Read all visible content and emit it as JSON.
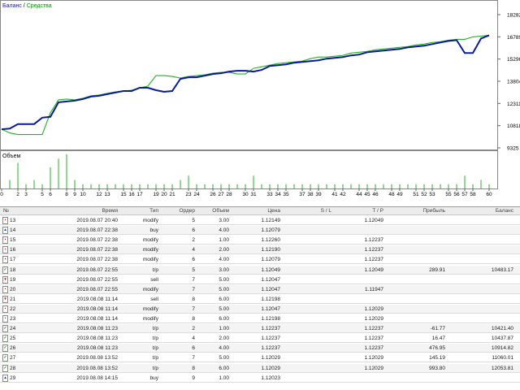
{
  "legend": {
    "balance": "Баланс",
    "separator": " / ",
    "equity": "Средства"
  },
  "volume_label": "Объем",
  "colors": {
    "balance": "#0a1a9a",
    "equity": "#22b422",
    "volume": "#22b422"
  },
  "chart_data": {
    "type": "line",
    "ylim": [
      9325,
      18282
    ],
    "yticks": [
      "18282",
      "16789",
      "15296",
      "13804",
      "12311",
      "10818",
      "9325"
    ],
    "xticks": [
      "0",
      "2",
      "3",
      "5",
      "6",
      "8",
      "9",
      "10",
      "12",
      "13",
      "15",
      "16",
      "17",
      "19",
      "20",
      "21",
      "23",
      "24",
      "26",
      "27",
      "28",
      "30",
      "31",
      "33",
      "34",
      "35",
      "37",
      "38",
      "39",
      "41",
      "42",
      "44",
      "45",
      "46",
      "48",
      "49",
      "51",
      "52",
      "53",
      "55",
      "56",
      "57",
      "58",
      "60"
    ],
    "x_max": 61,
    "series": [
      {
        "name": "Баланс",
        "points": [
          [
            0,
            10580
          ],
          [
            1,
            10620
          ],
          [
            2,
            10900
          ],
          [
            4,
            10900
          ],
          [
            5,
            11300
          ],
          [
            6,
            11350
          ],
          [
            7,
            12250
          ],
          [
            8,
            12300
          ],
          [
            9,
            12350
          ],
          [
            10,
            12450
          ],
          [
            11,
            12600
          ],
          [
            12,
            12650
          ],
          [
            13,
            12750
          ],
          [
            14,
            12850
          ],
          [
            15,
            12950
          ],
          [
            16,
            12950
          ],
          [
            17,
            13150
          ],
          [
            18,
            13150
          ],
          [
            19,
            13000
          ],
          [
            20,
            12900
          ],
          [
            21,
            12950
          ],
          [
            22,
            13700
          ],
          [
            23,
            13800
          ],
          [
            24,
            13800
          ],
          [
            25,
            13900
          ],
          [
            26,
            14000
          ],
          [
            27,
            14050
          ],
          [
            28,
            14150
          ],
          [
            29,
            14200
          ],
          [
            30,
            14200
          ],
          [
            31,
            14150
          ],
          [
            32,
            14250
          ],
          [
            33,
            14500
          ],
          [
            34,
            14550
          ],
          [
            35,
            14600
          ],
          [
            36,
            14700
          ],
          [
            37,
            14750
          ],
          [
            38,
            14800
          ],
          [
            39,
            14850
          ],
          [
            40,
            14950
          ],
          [
            41,
            15000
          ],
          [
            42,
            15050
          ],
          [
            43,
            15150
          ],
          [
            44,
            15200
          ],
          [
            45,
            15350
          ],
          [
            46,
            15400
          ],
          [
            47,
            15450
          ],
          [
            48,
            15500
          ],
          [
            49,
            15550
          ],
          [
            50,
            15650
          ],
          [
            51,
            15700
          ],
          [
            52,
            15750
          ],
          [
            53,
            15850
          ],
          [
            54,
            15950
          ],
          [
            55,
            16050
          ],
          [
            56,
            16100
          ],
          [
            57,
            15300
          ],
          [
            58,
            15300
          ],
          [
            59,
            16200
          ],
          [
            60,
            16400
          ]
        ]
      },
      {
        "name": "Средства",
        "points": [
          [
            0,
            10580
          ],
          [
            1,
            10350
          ],
          [
            2,
            10250
          ],
          [
            5,
            10250
          ],
          [
            6,
            11600
          ],
          [
            7,
            12400
          ],
          [
            8,
            12450
          ],
          [
            9,
            12400
          ],
          [
            10,
            12500
          ],
          [
            11,
            12650
          ],
          [
            12,
            12700
          ],
          [
            13,
            12800
          ],
          [
            14,
            12900
          ],
          [
            15,
            12950
          ],
          [
            16,
            13000
          ],
          [
            17,
            13150
          ],
          [
            18,
            13250
          ],
          [
            19,
            13900
          ],
          [
            20,
            13900
          ],
          [
            21,
            13850
          ],
          [
            22,
            13750
          ],
          [
            23,
            13850
          ],
          [
            24,
            13900
          ],
          [
            25,
            13950
          ],
          [
            26,
            14050
          ],
          [
            27,
            14100
          ],
          [
            28,
            14100
          ],
          [
            29,
            14000
          ],
          [
            30,
            14000
          ],
          [
            31,
            14350
          ],
          [
            32,
            14450
          ],
          [
            33,
            14550
          ],
          [
            34,
            14650
          ],
          [
            35,
            14700
          ],
          [
            36,
            14750
          ],
          [
            37,
            14800
          ],
          [
            38,
            14950
          ],
          [
            39,
            15050
          ],
          [
            40,
            15050
          ],
          [
            41,
            15100
          ],
          [
            42,
            15150
          ],
          [
            43,
            15300
          ],
          [
            44,
            15350
          ],
          [
            45,
            15400
          ],
          [
            46,
            15500
          ],
          [
            47,
            15550
          ],
          [
            48,
            15600
          ],
          [
            49,
            15650
          ],
          [
            50,
            15700
          ],
          [
            51,
            15800
          ],
          [
            52,
            15850
          ],
          [
            53,
            15950
          ],
          [
            54,
            16000
          ],
          [
            55,
            16100
          ],
          [
            56,
            16150
          ],
          [
            57,
            16150
          ],
          [
            58,
            16300
          ],
          [
            59,
            16350
          ],
          [
            60,
            16400
          ]
        ]
      }
    ],
    "volume": [
      [
        1,
        2
      ],
      [
        2,
        6
      ],
      [
        3,
        1
      ],
      [
        4,
        2
      ],
      [
        5,
        1
      ],
      [
        6,
        5
      ],
      [
        7,
        7
      ],
      [
        8,
        8
      ],
      [
        9,
        2
      ],
      [
        10,
        1
      ],
      [
        11,
        1
      ],
      [
        12,
        1
      ],
      [
        13,
        1
      ],
      [
        14,
        1
      ],
      [
        15,
        1
      ],
      [
        16,
        1
      ],
      [
        17,
        1
      ],
      [
        18,
        1
      ],
      [
        19,
        1
      ],
      [
        20,
        1
      ],
      [
        21,
        1
      ],
      [
        22,
        2
      ],
      [
        23,
        3
      ],
      [
        24,
        1
      ],
      [
        25,
        1
      ],
      [
        26,
        1
      ],
      [
        27,
        1
      ],
      [
        28,
        1
      ],
      [
        29,
        1
      ],
      [
        30,
        1
      ],
      [
        31,
        3
      ],
      [
        32,
        1
      ],
      [
        33,
        1
      ],
      [
        34,
        1
      ],
      [
        35,
        1
      ],
      [
        36,
        1
      ],
      [
        37,
        1
      ],
      [
        38,
        1
      ],
      [
        39,
        1
      ],
      [
        40,
        1
      ],
      [
        41,
        1
      ],
      [
        42,
        1
      ],
      [
        43,
        1
      ],
      [
        44,
        1
      ],
      [
        45,
        1
      ],
      [
        46,
        1
      ],
      [
        47,
        1
      ],
      [
        48,
        1
      ],
      [
        49,
        1
      ],
      [
        50,
        1
      ],
      [
        51,
        1
      ],
      [
        52,
        1
      ],
      [
        53,
        1
      ],
      [
        54,
        1
      ],
      [
        55,
        1
      ],
      [
        56,
        1
      ],
      [
        57,
        3
      ],
      [
        58,
        1
      ],
      [
        59,
        2
      ],
      [
        60,
        1
      ]
    ]
  },
  "table": {
    "headers": {
      "num": "№",
      "time": "Время",
      "type": "Тип",
      "order": "Ордер",
      "volume": "Объем",
      "price": "Цена",
      "sl": "S / L",
      "tp": "T / P",
      "profit": "Прибыль",
      "balance": "Баланс"
    },
    "rows": [
      {
        "num": "13",
        "time": "2019.08.07 20:40",
        "type": "modify",
        "order": "5",
        "volume": "3.00",
        "price": "1.12149",
        "sl": "",
        "tp": "1.12049",
        "profit": "",
        "balance": "",
        "icon": "modify"
      },
      {
        "num": "14",
        "time": "2019.08.07 22:38",
        "type": "buy",
        "order": "6",
        "volume": "4.00",
        "price": "1.12079",
        "sl": "",
        "tp": "",
        "profit": "",
        "balance": "",
        "icon": "buy"
      },
      {
        "num": "15",
        "time": "2019.08.07 22:38",
        "type": "modify",
        "order": "2",
        "volume": "1.00",
        "price": "1.12260",
        "sl": "",
        "tp": "1.12237",
        "profit": "",
        "balance": "",
        "icon": "modify"
      },
      {
        "num": "16",
        "time": "2019.08.07 22:38",
        "type": "modify",
        "order": "4",
        "volume": "2.00",
        "price": "1.12190",
        "sl": "",
        "tp": "1.12237",
        "profit": "",
        "balance": "",
        "icon": "modify"
      },
      {
        "num": "17",
        "time": "2019.08.07 22:38",
        "type": "modify",
        "order": "6",
        "volume": "4.00",
        "price": "1.12079",
        "sl": "",
        "tp": "1.12237",
        "profit": "",
        "balance": "",
        "icon": "modify"
      },
      {
        "num": "18",
        "time": "2019.08.07 22:55",
        "type": "t/p",
        "order": "5",
        "volume": "3.00",
        "price": "1.12049",
        "sl": "",
        "tp": "1.12049",
        "profit": "289.91",
        "balance": "10483.17",
        "icon": "tp"
      },
      {
        "num": "19",
        "time": "2019.08.07 22:55",
        "type": "sell",
        "order": "7",
        "volume": "5.00",
        "price": "1.12047",
        "sl": "",
        "tp": "",
        "profit": "",
        "balance": "",
        "icon": "sell"
      },
      {
        "num": "20",
        "time": "2019.08.07 22:55",
        "type": "modify",
        "order": "7",
        "volume": "5.00",
        "price": "1.12047",
        "sl": "",
        "tp": "1.11947",
        "profit": "",
        "balance": "",
        "icon": "modify"
      },
      {
        "num": "21",
        "time": "2019.08.08 11:14",
        "type": "sell",
        "order": "8",
        "volume": "6.00",
        "price": "1.12198",
        "sl": "",
        "tp": "",
        "profit": "",
        "balance": "",
        "icon": "sell"
      },
      {
        "num": "22",
        "time": "2019.08.08 11:14",
        "type": "modify",
        "order": "7",
        "volume": "5.00",
        "price": "1.12047",
        "sl": "",
        "tp": "1.12029",
        "profit": "",
        "balance": "",
        "icon": "modify"
      },
      {
        "num": "23",
        "time": "2019.08.08 11:14",
        "type": "modify",
        "order": "8",
        "volume": "6.00",
        "price": "1.12198",
        "sl": "",
        "tp": "1.12029",
        "profit": "",
        "balance": "",
        "icon": "modify"
      },
      {
        "num": "24",
        "time": "2019.08.08 11:23",
        "type": "t/p",
        "order": "2",
        "volume": "1.00",
        "price": "1.12237",
        "sl": "",
        "tp": "1.12237",
        "profit": "-61.77",
        "balance": "10421.40",
        "icon": "tp"
      },
      {
        "num": "25",
        "time": "2019.08.08 11:23",
        "type": "t/p",
        "order": "4",
        "volume": "2.00",
        "price": "1.12237",
        "sl": "",
        "tp": "1.12237",
        "profit": "16.47",
        "balance": "10437.87",
        "icon": "tp"
      },
      {
        "num": "26",
        "time": "2019.08.08 11:23",
        "type": "t/p",
        "order": "6",
        "volume": "4.00",
        "price": "1.12237",
        "sl": "",
        "tp": "1.12237",
        "profit": "476.95",
        "balance": "10914.82",
        "icon": "tp"
      },
      {
        "num": "27",
        "time": "2019.08.08 13:52",
        "type": "t/p",
        "order": "7",
        "volume": "5.00",
        "price": "1.12029",
        "sl": "",
        "tp": "1.12029",
        "profit": "145.19",
        "balance": "11060.01",
        "icon": "tp"
      },
      {
        "num": "28",
        "time": "2019.08.08 13:52",
        "type": "t/p",
        "order": "8",
        "volume": "6.00",
        "price": "1.12029",
        "sl": "",
        "tp": "1.12029",
        "profit": "993.80",
        "balance": "12053.81",
        "icon": "tp"
      },
      {
        "num": "29",
        "time": "2019.08.08 14:15",
        "type": "buy",
        "order": "9",
        "volume": "1.00",
        "price": "1.12023",
        "sl": "",
        "tp": "",
        "profit": "",
        "balance": "",
        "icon": "buy"
      }
    ]
  }
}
